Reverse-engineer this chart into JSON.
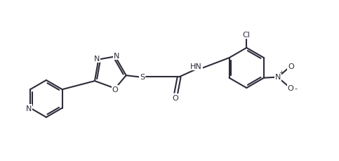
{
  "bg_color": "#ffffff",
  "bond_color": "#2d2d3a",
  "lw": 1.5,
  "fs": 8.0,
  "figsize": [
    4.83,
    2.3
  ],
  "dpi": 100,
  "xlim": [
    -0.5,
    10.5
  ],
  "ylim": [
    0.0,
    4.8
  ]
}
